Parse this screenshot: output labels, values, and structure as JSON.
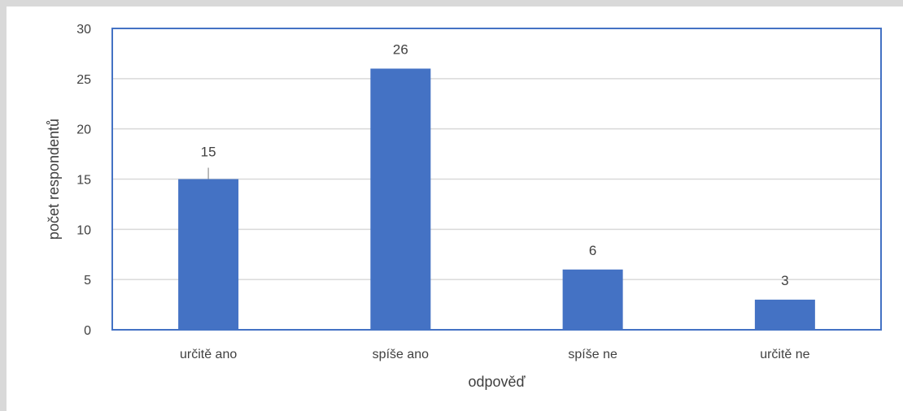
{
  "chart_data": {
    "type": "bar",
    "categories": [
      "určitě ano",
      "spíše ano",
      "spíše ne",
      "určitě ne"
    ],
    "values": [
      15,
      26,
      6,
      3
    ],
    "data_labels": [
      "15",
      "26",
      "6",
      "3"
    ],
    "title": "",
    "xlabel": "odpověď",
    "ylabel": "počet respondentů",
    "ylim": [
      0,
      30
    ],
    "yticks": [
      "0",
      "5",
      "10",
      "15",
      "20",
      "25",
      "30"
    ],
    "grid": true,
    "legend": "none",
    "bar_color": "#4472c4",
    "plot_border_color": "#4472c4",
    "grid_color": "#d9d9d9"
  }
}
